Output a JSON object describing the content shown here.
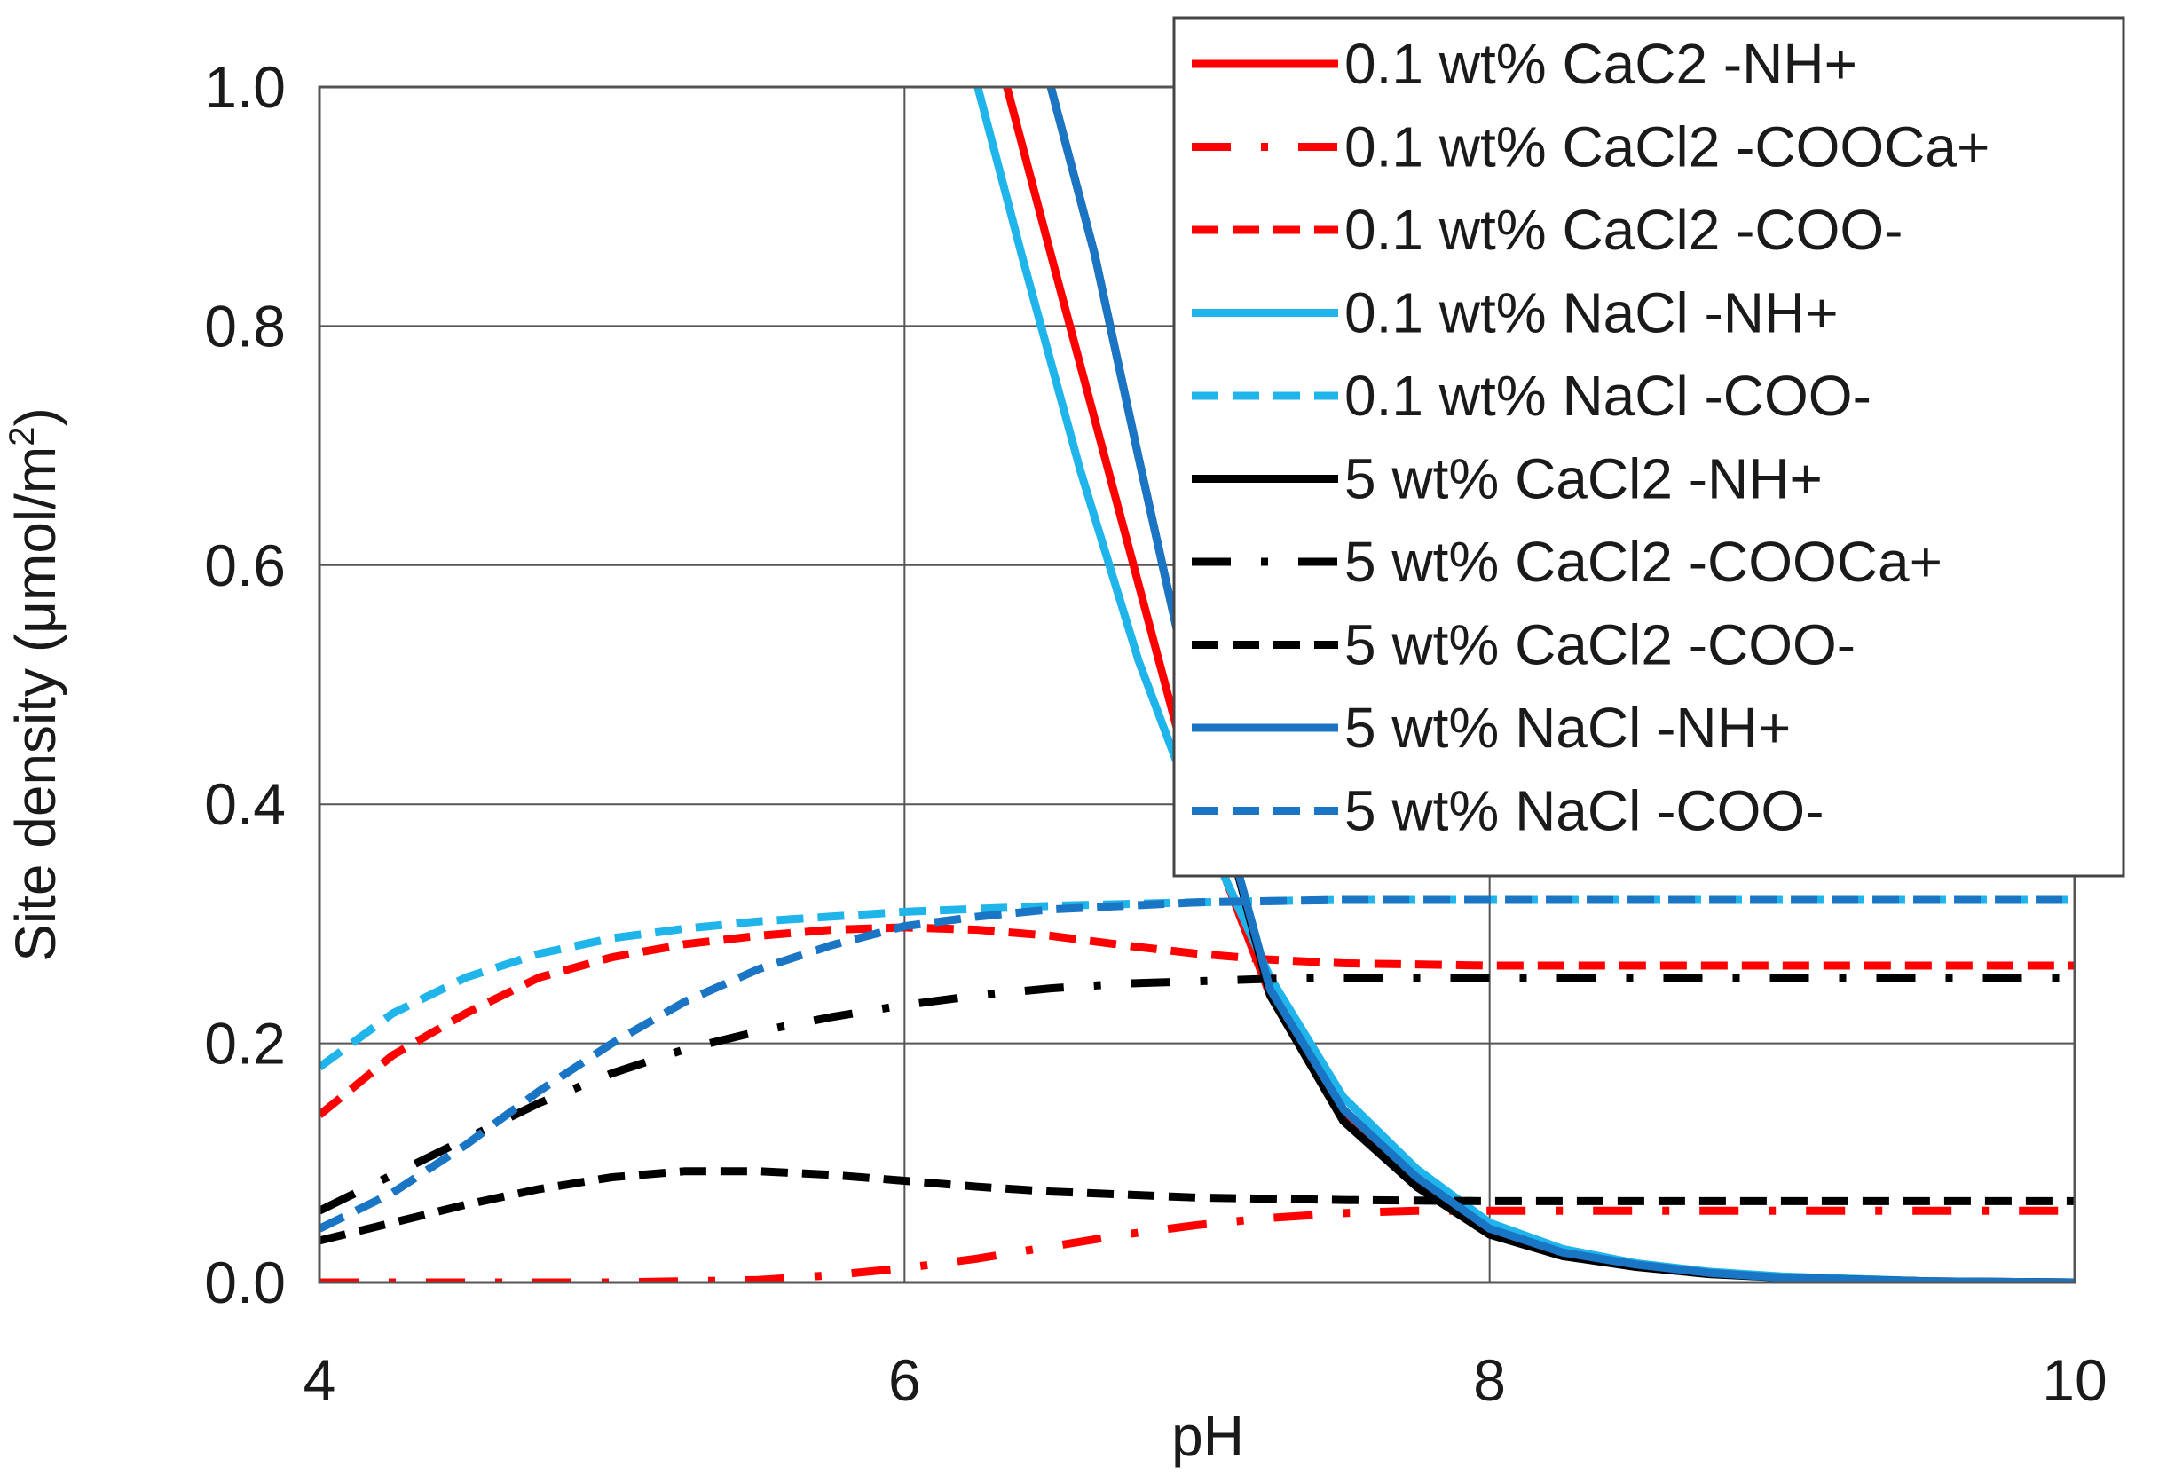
{
  "chart_data": {
    "type": "line",
    "xlabel": "pH",
    "ylabel": "Site density (μmol/m",
    "ylabel_sup": "2",
    "ylabel_suffix": ")",
    "xlim": [
      4,
      10
    ],
    "ylim": [
      0,
      1.0
    ],
    "x_ticks": [
      4,
      6,
      8,
      10
    ],
    "y_ticks": [
      0.0,
      0.2,
      0.4,
      0.6,
      0.8,
      1.0
    ],
    "x_tick_labels": [
      "4",
      "6",
      "8",
      "10"
    ],
    "y_tick_labels": [
      "0.0",
      "0.2",
      "0.4",
      "0.6",
      "0.8",
      "1.0"
    ],
    "grid": true,
    "legend_position": "top-right",
    "series": [
      {
        "name": "0.1 wt% CaC2 -NH+",
        "color": "#ff0000",
        "dash": "solid",
        "x": [
          6.35,
          6.5,
          6.75,
          7.0,
          7.25,
          7.5,
          7.75,
          8.0,
          8.25,
          8.5,
          8.75,
          9.0,
          9.5,
          10.0
        ],
        "y": [
          1.0,
          0.86,
          0.63,
          0.4,
          0.24,
          0.14,
          0.085,
          0.045,
          0.025,
          0.015,
          0.008,
          0.004,
          0.001,
          0.0
        ]
      },
      {
        "name": "0.1 wt% CaCl2 -COOCa+",
        "color": "#ff0000",
        "dash": "dashdot",
        "x": [
          4.0,
          4.5,
          5.0,
          5.5,
          5.75,
          6.0,
          6.25,
          6.5,
          6.75,
          7.0,
          7.25,
          7.5,
          7.75,
          8.0,
          8.5,
          9.0,
          9.5,
          10.0
        ],
        "y": [
          0.0,
          0.0,
          0.0,
          0.002,
          0.006,
          0.012,
          0.02,
          0.03,
          0.04,
          0.048,
          0.054,
          0.058,
          0.06,
          0.06,
          0.06,
          0.06,
          0.06,
          0.06
        ]
      },
      {
        "name": "0.1 wt% CaCl2 -COO-",
        "color": "#ff0000",
        "dash": "dash",
        "x": [
          4.0,
          4.25,
          4.5,
          4.75,
          5.0,
          5.25,
          5.5,
          5.75,
          6.0,
          6.25,
          6.5,
          6.75,
          7.0,
          7.25,
          7.5,
          8.0,
          8.5,
          9.0,
          10.0
        ],
        "y": [
          0.14,
          0.19,
          0.225,
          0.255,
          0.272,
          0.283,
          0.29,
          0.295,
          0.297,
          0.295,
          0.29,
          0.282,
          0.275,
          0.27,
          0.267,
          0.265,
          0.265,
          0.265,
          0.265
        ]
      },
      {
        "name": "0.1 wt% NaCl -NH+",
        "color": "#1fb4ea",
        "dash": "solid",
        "x": [
          6.25,
          6.4,
          6.6,
          6.8,
          7.0,
          7.25,
          7.5,
          7.75,
          8.0,
          8.25,
          8.5,
          8.75,
          9.0,
          9.5,
          10.0
        ],
        "y": [
          1.0,
          0.86,
          0.68,
          0.52,
          0.39,
          0.255,
          0.155,
          0.095,
          0.05,
          0.028,
          0.016,
          0.009,
          0.005,
          0.001,
          0.0
        ]
      },
      {
        "name": "0.1 wt% NaCl -COO-",
        "color": "#1fb4ea",
        "dash": "dash",
        "x": [
          4.0,
          4.25,
          4.5,
          4.75,
          5.0,
          5.25,
          5.5,
          5.75,
          6.0,
          6.5,
          7.0,
          7.5,
          8.0,
          9.0,
          10.0
        ],
        "y": [
          0.18,
          0.225,
          0.255,
          0.275,
          0.288,
          0.296,
          0.302,
          0.306,
          0.31,
          0.315,
          0.318,
          0.32,
          0.32,
          0.32,
          0.32
        ]
      },
      {
        "name": "5 wt% CaCl2 -NH+",
        "color": "#000000",
        "dash": "solid",
        "x": [
          6.5,
          6.65,
          6.8,
          7.0,
          7.25,
          7.5,
          7.75,
          8.0,
          8.25,
          8.5,
          8.75,
          9.0,
          9.5,
          10.0
        ],
        "y": [
          1.0,
          0.86,
          0.69,
          0.47,
          0.24,
          0.135,
          0.08,
          0.04,
          0.022,
          0.013,
          0.007,
          0.004,
          0.001,
          0.0
        ]
      },
      {
        "name": "5 wt% CaCl2 -COOCa+",
        "color": "#000000",
        "dash": "dashdot",
        "x": [
          4.0,
          4.25,
          4.5,
          4.75,
          5.0,
          5.25,
          5.5,
          5.75,
          6.0,
          6.25,
          6.5,
          6.75,
          7.0,
          7.25,
          7.5,
          8.0,
          8.5,
          9.0,
          10.0
        ],
        "y": [
          0.06,
          0.09,
          0.12,
          0.15,
          0.175,
          0.195,
          0.21,
          0.222,
          0.232,
          0.24,
          0.246,
          0.25,
          0.252,
          0.254,
          0.255,
          0.255,
          0.255,
          0.255,
          0.255
        ]
      },
      {
        "name": "5 wt% CaCl2 -COO-",
        "color": "#000000",
        "dash": "dash",
        "x": [
          4.0,
          4.25,
          4.5,
          4.75,
          5.0,
          5.25,
          5.5,
          5.75,
          6.0,
          6.25,
          6.5,
          7.0,
          7.5,
          8.0,
          9.0,
          10.0
        ],
        "y": [
          0.035,
          0.05,
          0.065,
          0.078,
          0.088,
          0.093,
          0.093,
          0.09,
          0.085,
          0.08,
          0.076,
          0.071,
          0.069,
          0.068,
          0.068,
          0.068
        ]
      },
      {
        "name": "5 wt% NaCl -NH+",
        "color": "#1a75c4",
        "dash": "solid",
        "x": [
          6.5,
          6.65,
          6.8,
          7.0,
          7.25,
          7.5,
          7.75,
          8.0,
          8.25,
          8.5,
          8.75,
          9.0,
          9.5,
          10.0
        ],
        "y": [
          1.0,
          0.86,
          0.69,
          0.47,
          0.245,
          0.145,
          0.088,
          0.045,
          0.025,
          0.015,
          0.008,
          0.004,
          0.001,
          0.0
        ]
      },
      {
        "name": "5 wt% NaCl -COO-",
        "color": "#1a75c4",
        "dash": "dash",
        "x": [
          4.0,
          4.25,
          4.5,
          4.75,
          5.0,
          5.25,
          5.5,
          5.75,
          6.0,
          6.25,
          6.5,
          7.0,
          7.5,
          8.0,
          9.0,
          10.0
        ],
        "y": [
          0.045,
          0.075,
          0.115,
          0.16,
          0.2,
          0.235,
          0.262,
          0.282,
          0.298,
          0.306,
          0.312,
          0.318,
          0.32,
          0.32,
          0.32,
          0.32
        ]
      }
    ]
  }
}
